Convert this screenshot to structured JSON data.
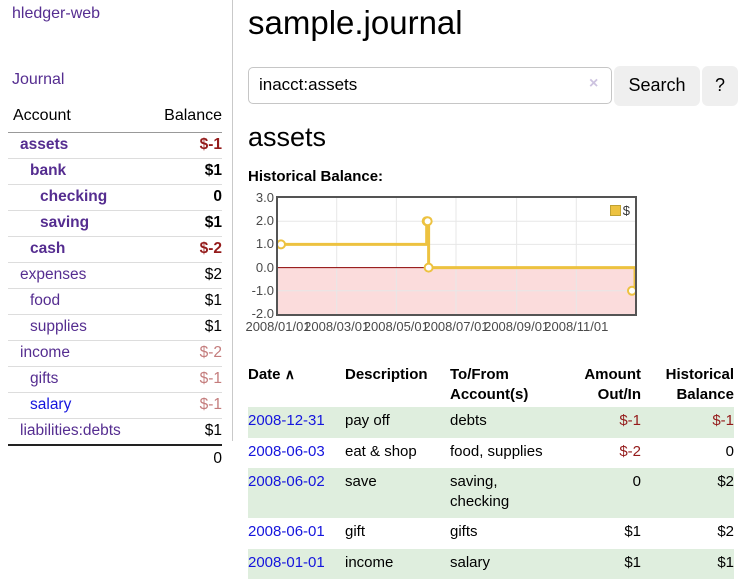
{
  "app": {
    "title": "hledger-web"
  },
  "colors": {
    "link_purple": "#552d90",
    "link_blue": "#1515dd",
    "negative_dark": "#941b1b",
    "negative_light": "#c47c7c",
    "row_stripe_green": "#dfeede",
    "button_gray": "#efefef",
    "chart_line_gold": "#edc240",
    "chart_negative_pink": "#fbdcdc",
    "chart_zero_line": "#8b0000"
  },
  "sidebar": {
    "nav": {
      "journal": "Journal"
    },
    "accounts_table": {
      "headers": {
        "account": "Account",
        "balance": "Balance"
      },
      "rows": [
        {
          "name": "assets",
          "balance": "$-1"
        },
        {
          "name": "bank",
          "balance": "$1"
        },
        {
          "name": "checking",
          "balance": "0"
        },
        {
          "name": "saving",
          "balance": "$1"
        },
        {
          "name": "cash",
          "balance": "$-2"
        },
        {
          "name": "expenses",
          "balance": "$2"
        },
        {
          "name": "food",
          "balance": "$1"
        },
        {
          "name": "supplies",
          "balance": "$1"
        },
        {
          "name": "income",
          "balance": "$-2"
        },
        {
          "name": "gifts",
          "balance": "$-1"
        },
        {
          "name": "salary",
          "balance": "$-1"
        },
        {
          "name": "liabilities:debts",
          "balance": "$1"
        }
      ],
      "total": "0"
    }
  },
  "main": {
    "title": "sample.journal",
    "search": {
      "value": "inacct:assets",
      "clear_icon": "×",
      "button": "Search",
      "help_button": "?"
    },
    "account_heading": "assets",
    "chart_label": "Historical Balance:",
    "register_table": {
      "headers": {
        "date": "Date",
        "sort_icon": "∧",
        "description": "Description",
        "tofrom_1": "To/From",
        "tofrom_2": "Account(s)",
        "amount_1": "Amount",
        "amount_2": "Out/In",
        "balance_1": "Historical",
        "balance_2": "Balance"
      },
      "rows": [
        {
          "date": "2008-12-31",
          "description": "pay off",
          "accounts": "debts",
          "amount": "$-1",
          "balance": "$-1"
        },
        {
          "date": "2008-06-03",
          "description": "eat & shop",
          "accounts": "food, supplies",
          "amount": "$-2",
          "balance": "0"
        },
        {
          "date": "2008-06-02",
          "description": "save",
          "accounts": "saving, checking",
          "amount": "0",
          "balance": "$2"
        },
        {
          "date": "2008-06-01",
          "description": "gift",
          "accounts": "gifts",
          "amount": "$1",
          "balance": "$2"
        },
        {
          "date": "2008-01-01",
          "description": "income",
          "accounts": "salary",
          "amount": "$1",
          "balance": "$1"
        }
      ]
    }
  },
  "chart_data": {
    "type": "line",
    "title": "Historical Balance:",
    "series": [
      {
        "name": "$",
        "color": "#edc240",
        "step": true,
        "points": [
          [
            "2008-01-01",
            1
          ],
          [
            "2008-06-01",
            2
          ],
          [
            "2008-06-02",
            2
          ],
          [
            "2008-06-03",
            0
          ],
          [
            "2008-12-31",
            -1
          ]
        ]
      }
    ],
    "xrange": [
      "2008-01-01",
      "2008-12-31"
    ],
    "ylim": [
      -2,
      3
    ],
    "yticks": [
      {
        "label": "3.0",
        "value": 3
      },
      {
        "label": "2.0",
        "value": 2
      },
      {
        "label": "1.0",
        "value": 1
      },
      {
        "label": "0.0",
        "value": 0
      },
      {
        "label": "-1.0",
        "value": -1
      },
      {
        "label": "-2.0",
        "value": -2
      }
    ],
    "xticks": [
      {
        "label": "2008/01/01",
        "date": "2008-01-01"
      },
      {
        "label": "2008/03/01",
        "date": "2008-03-01"
      },
      {
        "label": "2008/05/01",
        "date": "2008-05-01"
      },
      {
        "label": "2008/07/01",
        "date": "2008-07-01"
      },
      {
        "label": "2008/09/01",
        "date": "2008-09-01"
      },
      {
        "label": "2008/11/01",
        "date": "2008-11-01"
      }
    ],
    "grid": true,
    "legend_position": "top-right",
    "negative_region_fill": "#fbdcdc",
    "zero_line_color": "#8b0000"
  }
}
